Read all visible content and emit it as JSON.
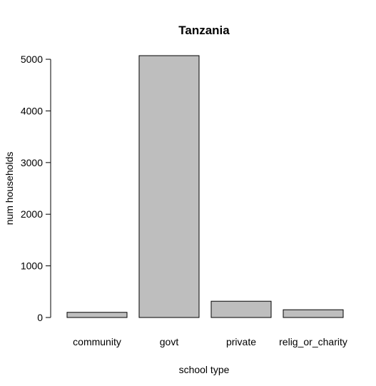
{
  "chart_data": {
    "type": "bar",
    "title": "Tanzania",
    "xlabel": "school type",
    "ylabel": "num households",
    "categories": [
      "community",
      "govt",
      "private",
      "relig_or_charity"
    ],
    "values": [
      100,
      5070,
      315,
      150
    ],
    "ylim": [
      0,
      5070
    ],
    "yticks": [
      0,
      1000,
      2000,
      3000,
      4000,
      5000
    ],
    "grid": false,
    "legend": "none",
    "bar_fill": "#bebebe",
    "bar_stroke": "#000000"
  }
}
